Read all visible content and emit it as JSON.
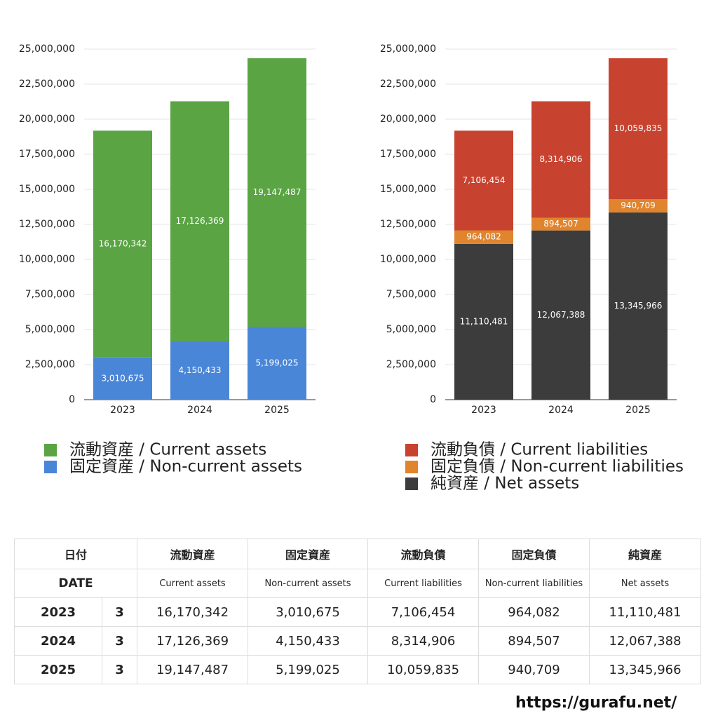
{
  "chart_data": [
    {
      "type": "stacked-bar",
      "categories": [
        "2023",
        "2024",
        "2025"
      ],
      "series": [
        {
          "name": "流動資産 / Current assets",
          "color": "#5aa444",
          "values": [
            16170342,
            17126369,
            19147487
          ],
          "value_labels": [
            "16,170,342",
            "17,126,369",
            "19,147,487"
          ]
        },
        {
          "name": "固定資産 / Non-current assets",
          "color": "#4a86d8",
          "values": [
            3010675,
            4150433,
            5199025
          ],
          "value_labels": [
            "3,010,675",
            "4,150,433",
            "5,199,025"
          ]
        }
      ],
      "ylim": [
        0,
        25000000
      ],
      "yticks": [
        {
          "value": 0,
          "label": "0"
        },
        {
          "value": 2500000,
          "label": "2,500,000"
        },
        {
          "value": 5000000,
          "label": "5,000,000"
        },
        {
          "value": 7500000,
          "label": "7,500,000"
        },
        {
          "value": 10000000,
          "label": "10,000,000"
        },
        {
          "value": 12500000,
          "label": "12,500,000"
        },
        {
          "value": 15000000,
          "label": "15,000,000"
        },
        {
          "value": 17500000,
          "label": "17,500,000"
        },
        {
          "value": 20000000,
          "label": "20,000,000"
        },
        {
          "value": 22500000,
          "label": "22,500,000"
        },
        {
          "value": 25000000,
          "label": "25,000,000"
        }
      ],
      "grid": true
    },
    {
      "type": "stacked-bar",
      "categories": [
        "2023",
        "2024",
        "2025"
      ],
      "series": [
        {
          "name": "流動負債 / Current liabilities",
          "color": "#c8432f",
          "values": [
            7106454,
            8314906,
            10059835
          ],
          "value_labels": [
            "7,106,454",
            "8,314,906",
            "10,059,835"
          ]
        },
        {
          "name": "固定負債 / Non-current liabilities",
          "color": "#e0842e",
          "values": [
            964082,
            894507,
            940709
          ],
          "value_labels": [
            "964,082",
            "894,507",
            "940,709"
          ]
        },
        {
          "name": "純資産 / Net assets",
          "color": "#3c3c3c",
          "values": [
            11110481,
            12067388,
            13345966
          ],
          "value_labels": [
            "11,110,481",
            "12,067,388",
            "13,345,966"
          ]
        }
      ],
      "ylim": [
        0,
        25000000
      ],
      "yticks": [
        {
          "value": 0,
          "label": "0"
        },
        {
          "value": 2500000,
          "label": "2,500,000"
        },
        {
          "value": 5000000,
          "label": "5,000,000"
        },
        {
          "value": 7500000,
          "label": "7,500,000"
        },
        {
          "value": 10000000,
          "label": "10,000,000"
        },
        {
          "value": 12500000,
          "label": "12,500,000"
        },
        {
          "value": 15000000,
          "label": "15,000,000"
        },
        {
          "value": 17500000,
          "label": "17,500,000"
        },
        {
          "value": 20000000,
          "label": "20,000,000"
        },
        {
          "value": 22500000,
          "label": "22,500,000"
        },
        {
          "value": 25000000,
          "label": "25,000,000"
        }
      ],
      "grid": true
    }
  ],
  "table": {
    "header": [
      [
        "日付",
        "流動資産",
        "固定資産",
        "流動負債",
        "固定負債",
        "純資産"
      ],
      [
        "DATE",
        "Current assets",
        "Non-current assets",
        "Current liabilities",
        "Non-current liabilities",
        "Net assets"
      ]
    ],
    "rows": [
      [
        "2023",
        "3",
        "16,170,342",
        "3,010,675",
        "7,106,454",
        "964,082",
        "11,110,481"
      ],
      [
        "2024",
        "3",
        "17,126,369",
        "4,150,433",
        "8,314,906",
        "894,507",
        "12,067,388"
      ],
      [
        "2025",
        "3",
        "19,147,487",
        "5,199,025",
        "10,059,835",
        "940,709",
        "13,345,966"
      ]
    ]
  },
  "footer": "https://gurafu.net/"
}
